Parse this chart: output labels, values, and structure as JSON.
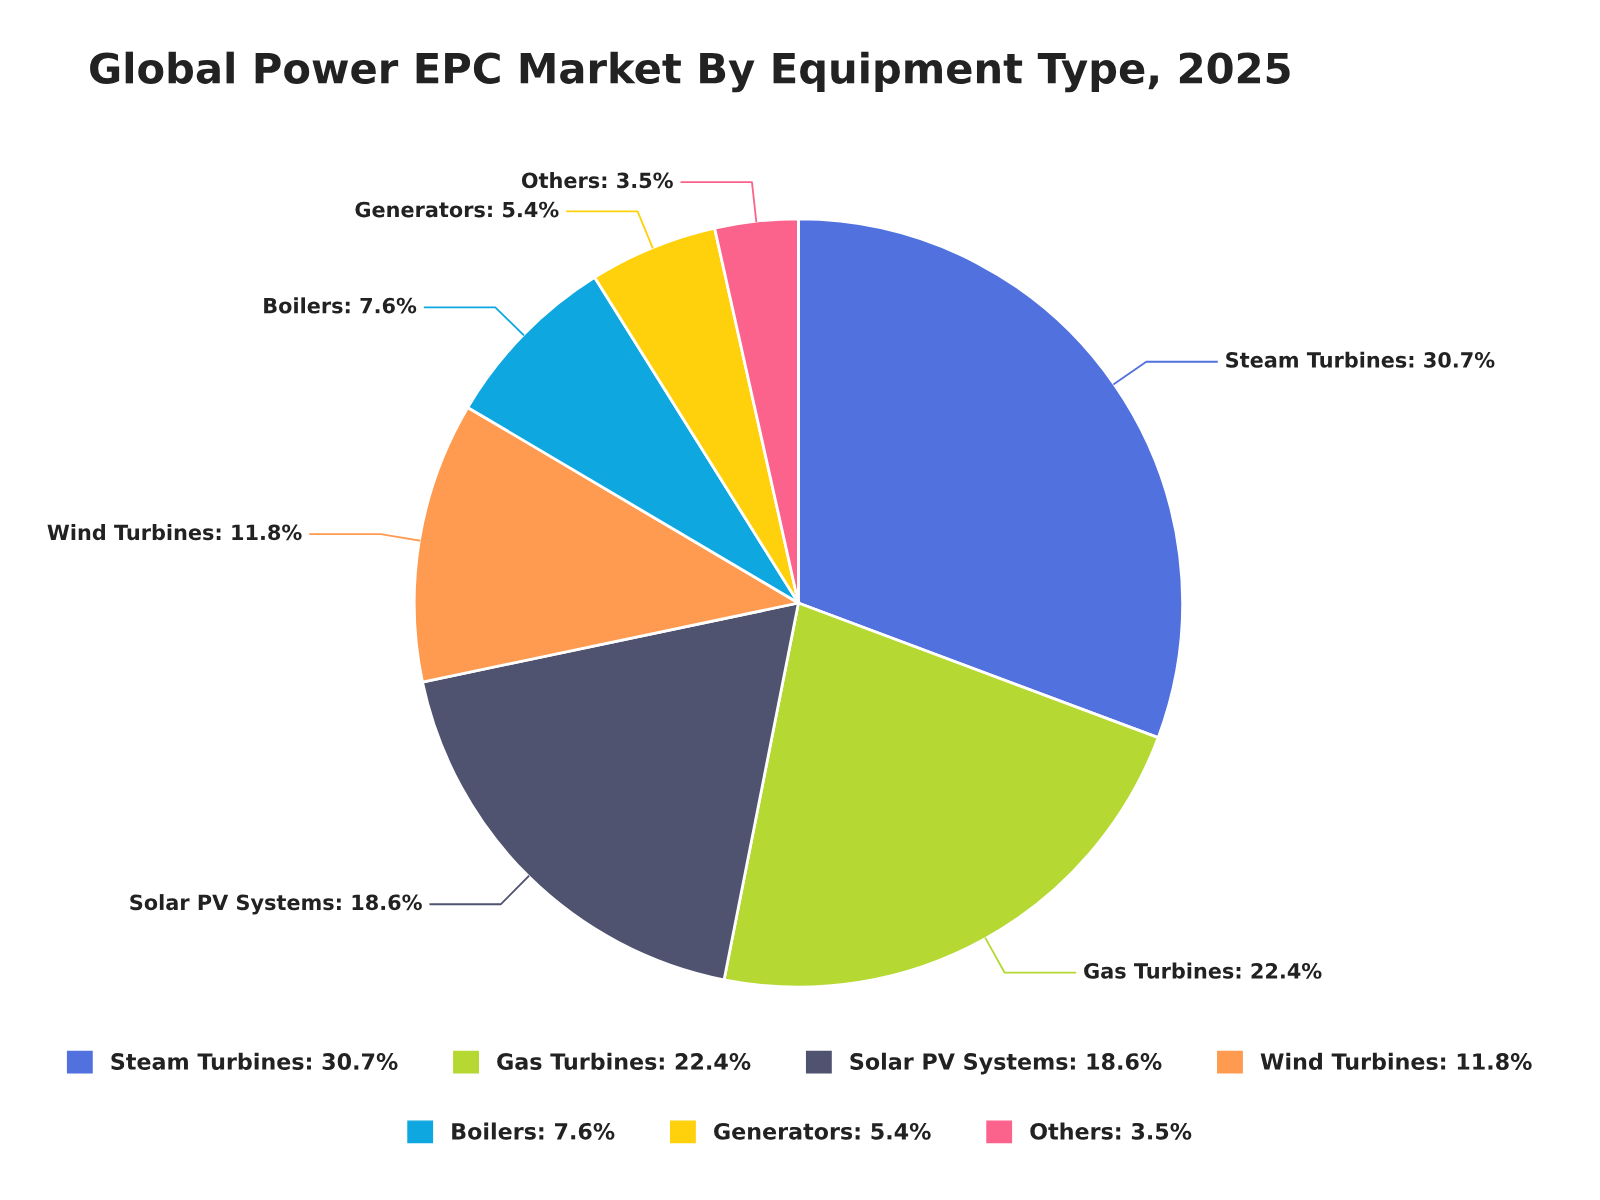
{
  "chart_data": {
    "type": "pie",
    "title": "Global Power EPC Market By Equipment Type, 2025",
    "categories": [
      "Steam Turbines: 30.7%",
      "Gas Turbines: 22.4%",
      "Solar PV Systems: 18.6%",
      "Wind Turbines: 11.8%",
      "Boilers: 7.6%",
      "Generators: 5.4%",
      "Others: 3.5%"
    ],
    "values": [
      30.7,
      22.4,
      18.6,
      11.8,
      7.6,
      5.4,
      3.5
    ],
    "colors": [
      "#5171de",
      "#b5d832",
      "#505370",
      "#ff9b50",
      "#0fa7e0",
      "#ffd10c",
      "#fc638c"
    ],
    "legend": "bottom"
  }
}
